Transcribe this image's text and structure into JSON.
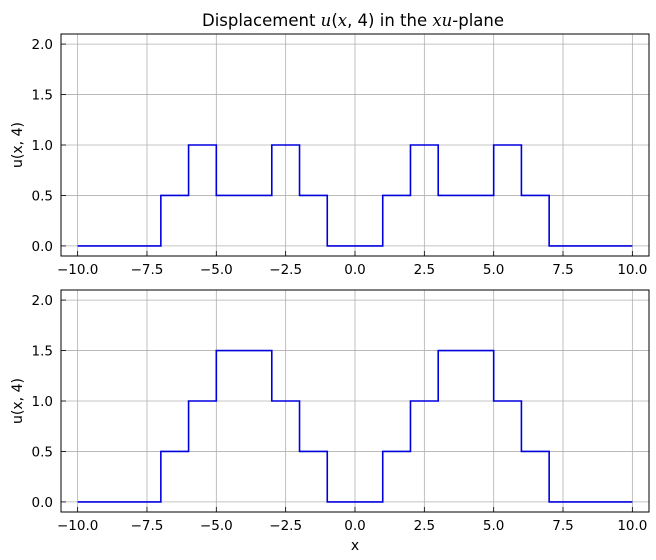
{
  "chart_data": [
    {
      "type": "line",
      "title": {
        "pre": "Displacement ",
        "math1": "u",
        "mid1": "(",
        "math2": "x",
        "mid2": ", 4) in the ",
        "math3": "xu",
        "post": "-plane"
      },
      "xlabel": "",
      "ylabel": "u(x, 4)",
      "xlim": [
        -10.6,
        10.6
      ],
      "ylim": [
        -0.1,
        2.1
      ],
      "xticks": [
        -10.0,
        -7.5,
        -5.0,
        -2.5,
        0.0,
        2.5,
        5.0,
        7.5,
        10.0
      ],
      "xtick_labels": [
        "−10.0",
        "−7.5",
        "−5.0",
        "−2.5",
        "0.0",
        "2.5",
        "5.0",
        "7.5",
        "10.0"
      ],
      "yticks": [
        0.0,
        0.5,
        1.0,
        1.5,
        2.0
      ],
      "ytick_labels": [
        "0.0",
        "0.5",
        "1.0",
        "1.5",
        "2.0"
      ],
      "grid": true,
      "color": "#0000dd",
      "series": [
        {
          "x": [
            -10,
            -7,
            -7,
            -6,
            -6,
            -5,
            -5,
            -3,
            -3,
            -2,
            -2,
            -1,
            -1,
            1,
            1,
            2,
            2,
            3,
            3,
            5,
            5,
            6,
            6,
            7,
            7,
            10
          ],
          "y": [
            0,
            0,
            0.5,
            0.5,
            1,
            1,
            0.5,
            0.5,
            1,
            1,
            0.5,
            0.5,
            0,
            0,
            0.5,
            0.5,
            1,
            1,
            0.5,
            0.5,
            1,
            1,
            0.5,
            0.5,
            0,
            0
          ]
        }
      ]
    },
    {
      "type": "line",
      "xlabel": "x",
      "ylabel": "u(x, 4)",
      "xlim": [
        -10.6,
        10.6
      ],
      "ylim": [
        -0.1,
        2.1
      ],
      "xticks": [
        -10.0,
        -7.5,
        -5.0,
        -2.5,
        0.0,
        2.5,
        5.0,
        7.5,
        10.0
      ],
      "xtick_labels": [
        "−10.0",
        "−7.5",
        "−5.0",
        "−2.5",
        "0.0",
        "2.5",
        "5.0",
        "7.5",
        "10.0"
      ],
      "yticks": [
        0.0,
        0.5,
        1.0,
        1.5,
        2.0
      ],
      "ytick_labels": [
        "0.0",
        "0.5",
        "1.0",
        "1.5",
        "2.0"
      ],
      "grid": true,
      "color": "#0000dd",
      "series": [
        {
          "x": [
            -10,
            -7,
            -7,
            -6,
            -6,
            -5,
            -5,
            -3,
            -3,
            -2,
            -2,
            -1,
            -1,
            1,
            1,
            2,
            2,
            3,
            3,
            5,
            5,
            6,
            6,
            7,
            7,
            10
          ],
          "y": [
            0,
            0,
            0.5,
            0.5,
            1,
            1,
            1.5,
            1.5,
            1,
            1,
            0.5,
            0.5,
            0,
            0,
            0.5,
            0.5,
            1,
            1,
            1.5,
            1.5,
            1,
            1,
            0.5,
            0.5,
            0,
            0
          ]
        }
      ]
    }
  ]
}
